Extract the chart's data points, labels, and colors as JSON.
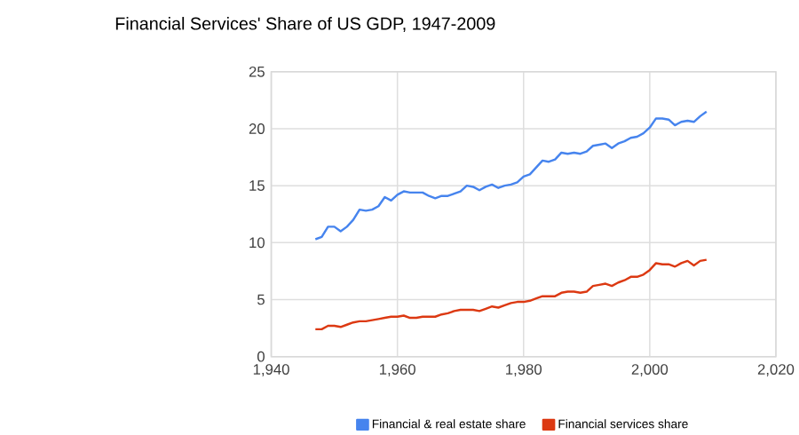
{
  "chart_data": {
    "type": "line",
    "title": "Financial Services' Share of US GDP, 1947-2009",
    "x": [
      1947,
      1948,
      1949,
      1950,
      1951,
      1952,
      1953,
      1954,
      1955,
      1956,
      1957,
      1958,
      1959,
      1960,
      1961,
      1962,
      1963,
      1964,
      1965,
      1966,
      1967,
      1968,
      1969,
      1970,
      1971,
      1972,
      1973,
      1974,
      1975,
      1976,
      1977,
      1978,
      1979,
      1980,
      1981,
      1982,
      1983,
      1984,
      1985,
      1986,
      1987,
      1988,
      1989,
      1990,
      1991,
      1992,
      1993,
      1994,
      1995,
      1996,
      1997,
      1998,
      1999,
      2000,
      2001,
      2002,
      2003,
      2004,
      2005,
      2006,
      2007,
      2008,
      2009
    ],
    "series": [
      {
        "name": "Financial & real estate share",
        "color": "#4684ee",
        "values": [
          10.3,
          10.5,
          11.4,
          11.4,
          11.0,
          11.4,
          12.0,
          12.9,
          12.8,
          12.9,
          13.2,
          14.0,
          13.7,
          14.2,
          14.5,
          14.4,
          14.4,
          14.4,
          14.1,
          13.9,
          14.1,
          14.1,
          14.3,
          14.5,
          15.0,
          14.9,
          14.6,
          14.9,
          15.1,
          14.8,
          15.0,
          15.1,
          15.3,
          15.8,
          16.0,
          16.6,
          17.2,
          17.1,
          17.3,
          17.9,
          17.8,
          17.9,
          17.8,
          18.0,
          18.5,
          18.6,
          18.7,
          18.3,
          18.7,
          18.9,
          19.2,
          19.3,
          19.6,
          20.1,
          20.9,
          20.9,
          20.8,
          20.3,
          20.6,
          20.7,
          20.6,
          21.1,
          21.5
        ]
      },
      {
        "name": "Financial services share",
        "color": "#dc3912",
        "values": [
          2.4,
          2.4,
          2.7,
          2.7,
          2.6,
          2.8,
          3.0,
          3.1,
          3.1,
          3.2,
          3.3,
          3.4,
          3.5,
          3.5,
          3.6,
          3.4,
          3.4,
          3.5,
          3.5,
          3.5,
          3.7,
          3.8,
          4.0,
          4.1,
          4.1,
          4.1,
          4.0,
          4.2,
          4.4,
          4.3,
          4.5,
          4.7,
          4.8,
          4.8,
          4.9,
          5.1,
          5.3,
          5.3,
          5.3,
          5.6,
          5.7,
          5.7,
          5.6,
          5.7,
          6.2,
          6.3,
          6.4,
          6.2,
          6.5,
          6.7,
          7.0,
          7.0,
          7.2,
          7.6,
          8.2,
          8.1,
          8.1,
          7.9,
          8.2,
          8.4,
          8.0,
          8.4,
          8.5
        ]
      }
    ],
    "xlim": [
      1940,
      2020
    ],
    "xticks": [
      {
        "value": 1940,
        "label": "1,940"
      },
      {
        "value": 1960,
        "label": "1,960"
      },
      {
        "value": 1980,
        "label": "1,980"
      },
      {
        "value": 2000,
        "label": "2,000"
      },
      {
        "value": 2020,
        "label": "2,020"
      }
    ],
    "ylim": [
      0,
      25
    ],
    "yticks": [
      0,
      5,
      10,
      15,
      20,
      25
    ],
    "grid": true,
    "legend": "bottom",
    "line_style": "solid"
  }
}
